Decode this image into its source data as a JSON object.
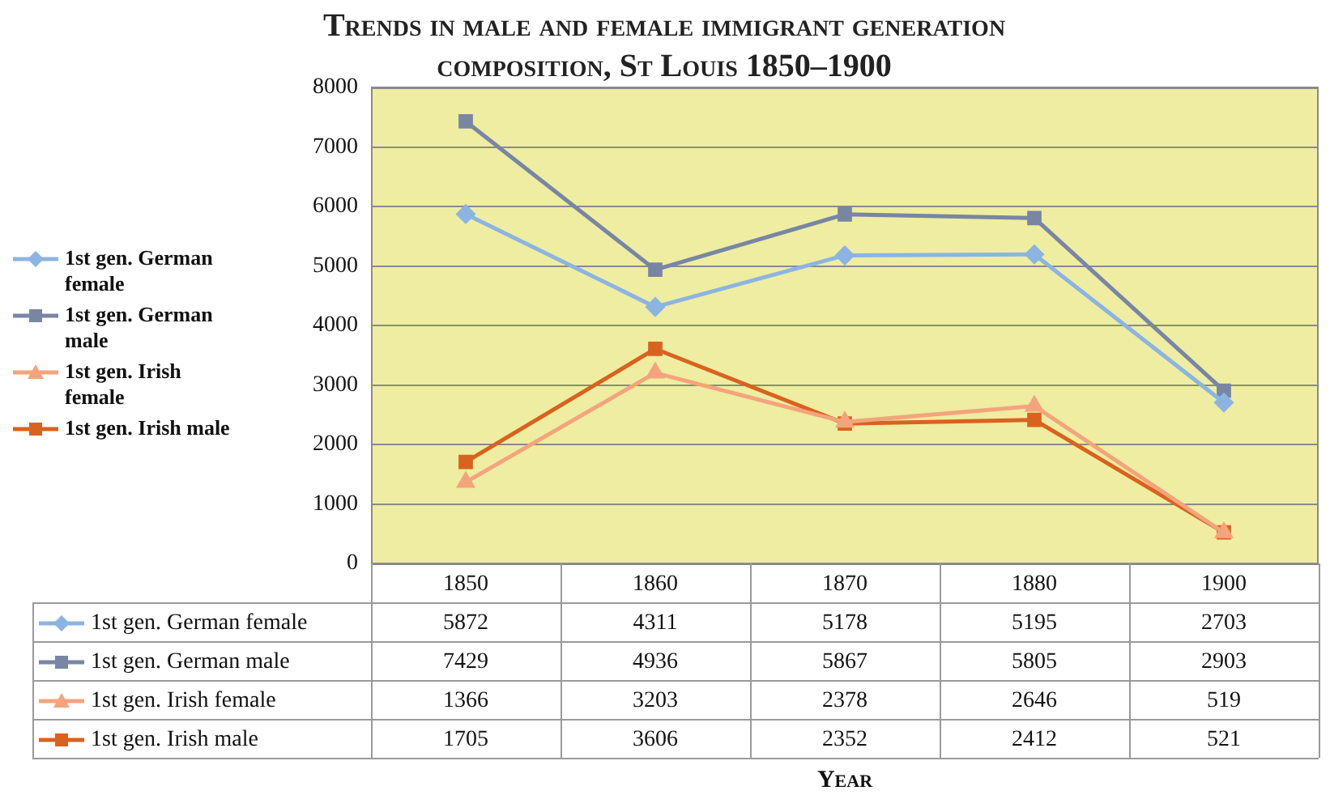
{
  "chart_data": {
    "type": "line",
    "title": "Trends in male and female immigrant generation composition, St Louis 1850–1900",
    "annotations": [
      "Year"
    ],
    "categories": [
      "1850",
      "1860",
      "1870",
      "1880",
      "1900"
    ],
    "series": [
      {
        "name": "1st gen. German female",
        "color": "#8cb4e2",
        "marker": "diamond",
        "values": [
          5872,
          4311,
          5178,
          5195,
          2703
        ]
      },
      {
        "name": "1st gen. German male",
        "color": "#7886a4",
        "marker": "square",
        "values": [
          7429,
          4936,
          5867,
          5805,
          2903
        ]
      },
      {
        "name": "1st gen. Irish female",
        "color": "#f4a47c",
        "marker": "triangle",
        "values": [
          1366,
          3203,
          2378,
          2646,
          519
        ]
      },
      {
        "name": "1st gen. Irish male",
        "color": "#d9621f",
        "marker": "square",
        "values": [
          1705,
          3606,
          2352,
          2412,
          521
        ]
      }
    ],
    "ylim": [
      0,
      8000
    ],
    "yticks": [
      0,
      1000,
      2000,
      3000,
      4000,
      5000,
      6000,
      7000,
      8000
    ],
    "grid": "y",
    "legend": "left",
    "data_labels": true
  }
}
